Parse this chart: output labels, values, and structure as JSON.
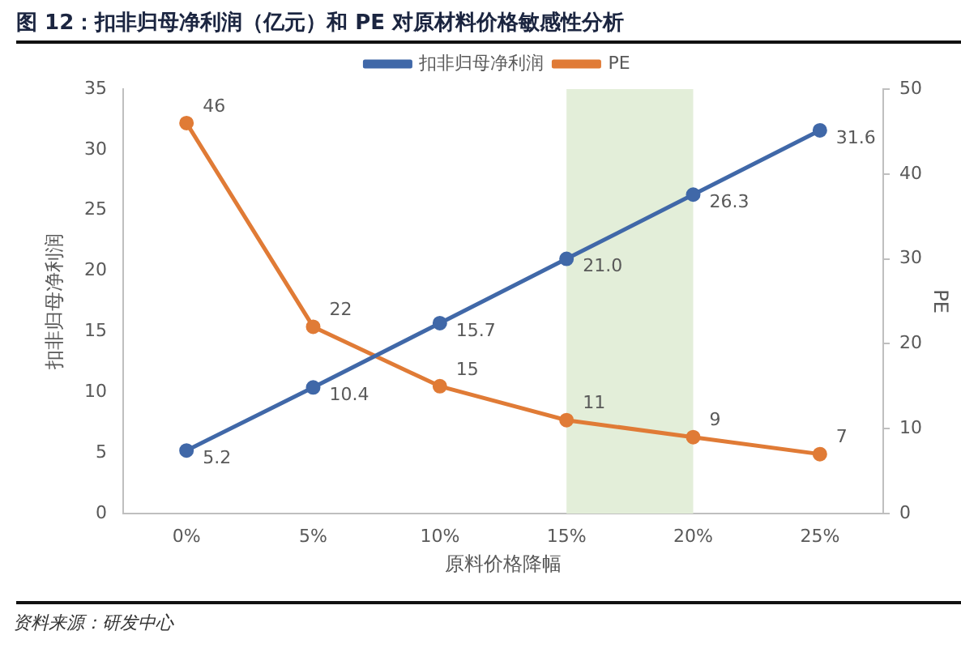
{
  "chart_data": {
    "type": "line",
    "title": "图 12：扣非归母净利润（亿元）和 PE 对原材料价格敏感性分析",
    "categories": [
      "0%",
      "5%",
      "10%",
      "15%",
      "20%",
      "25%"
    ],
    "series": [
      {
        "name": "扣非归母净利润",
        "color": "#4068a8",
        "values": [
          5.2,
          10.4,
          15.7,
          21.0,
          26.3,
          31.6
        ],
        "value_labels": [
          "5.2",
          "10.4",
          "15.7",
          "21.0",
          "26.3",
          "31.6"
        ]
      },
      {
        "name": "PE",
        "color": "#e07b36",
        "axis": "y2",
        "values": [
          46,
          22,
          15,
          11,
          9,
          7
        ],
        "value_labels": [
          "46",
          "22",
          "15",
          "11",
          "9",
          "7"
        ]
      }
    ],
    "xlabel": "原料价格降幅",
    "ylabel": "扣非归母净利润",
    "y2label": "PE",
    "ylim": [
      0,
      35
    ],
    "yticks": [
      0,
      5,
      10,
      15,
      20,
      25,
      30,
      35
    ],
    "y2lim": [
      0,
      50
    ],
    "y2ticks": [
      0,
      10,
      20,
      30,
      40,
      50
    ],
    "bands": [
      {
        "axis": "x",
        "from": "15%",
        "to": "20%",
        "color": "#e3eed9"
      }
    ],
    "legend": "top",
    "marker": "circle",
    "grid": false,
    "annotations": [
      "资料来源：研发中心"
    ]
  }
}
